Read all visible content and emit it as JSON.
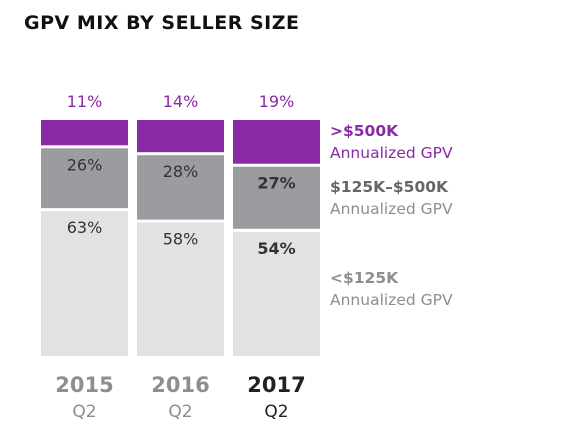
{
  "chart_data": {
    "type": "bar",
    "stacked": true,
    "percent_stacked": true,
    "title": "GPV MIX BY SELLER SIZE",
    "categories": [
      {
        "year": "2015",
        "quarter": "Q2",
        "highlight": false
      },
      {
        "year": "2016",
        "quarter": "Q2",
        "highlight": false
      },
      {
        "year": "2017",
        "quarter": "Q2",
        "highlight": true
      }
    ],
    "series": [
      {
        "legend_head": "<$125K",
        "legend_sub": "Annualized GPV",
        "values": [
          63,
          58,
          54
        ],
        "labels": [
          "63%",
          "58%",
          "54%"
        ],
        "color": "#e2e2e4"
      },
      {
        "legend_head": "$125K–$500K",
        "legend_sub": "Annualized GPV",
        "values": [
          26,
          28,
          27
        ],
        "labels": [
          "26%",
          "28%",
          "27%"
        ],
        "color": "#9a9c9f"
      },
      {
        "legend_head": ">$500K",
        "legend_sub": "Annualized GPV",
        "values": [
          11,
          14,
          19
        ],
        "labels": [
          "11%",
          "14%",
          "19%"
        ],
        "color": "#8a2aa6"
      }
    ],
    "colors": {
      "accent": "#8a2aa6",
      "muted_text": "#8e8e8e",
      "highlight_text": "#222222",
      "label_text": "#333333"
    },
    "legend_position": "right",
    "grid": false
  }
}
